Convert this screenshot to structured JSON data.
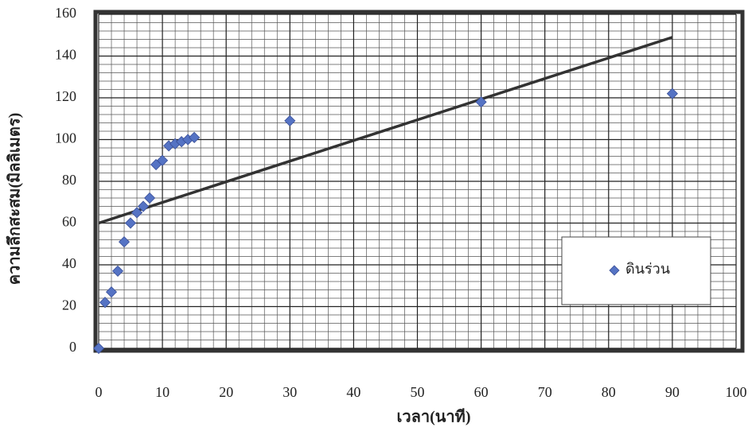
{
  "chart_data": {
    "type": "scatter",
    "x_label": "เวลา(นาที)",
    "y_label": "ความลึกสะสม(มิลลิเมตร)",
    "series": [
      {
        "name": "ดินร่วน",
        "color": "#5573c4",
        "x": [
          0,
          1,
          2,
          3,
          4,
          5,
          6,
          7,
          8,
          9,
          10,
          11,
          12,
          13,
          14,
          15,
          30,
          60,
          90
        ],
        "values": [
          0,
          22,
          27,
          37,
          51,
          60,
          65,
          68,
          72,
          88,
          90,
          97,
          98,
          99,
          100,
          101,
          109,
          118,
          122
        ]
      }
    ],
    "trendline": {
      "x": [
        0,
        90
      ],
      "values": [
        60,
        149
      ],
      "color": "#333333"
    },
    "xlim": [
      0,
      100
    ],
    "xticks": [
      0,
      10,
      20,
      30,
      40,
      50,
      60,
      70,
      80,
      90,
      100
    ],
    "ylim": [
      0,
      160
    ],
    "yticks": [
      0,
      20,
      40,
      60,
      80,
      100,
      120,
      140,
      160
    ],
    "grid": true,
    "minor_grid": true,
    "legend": "center-right"
  }
}
